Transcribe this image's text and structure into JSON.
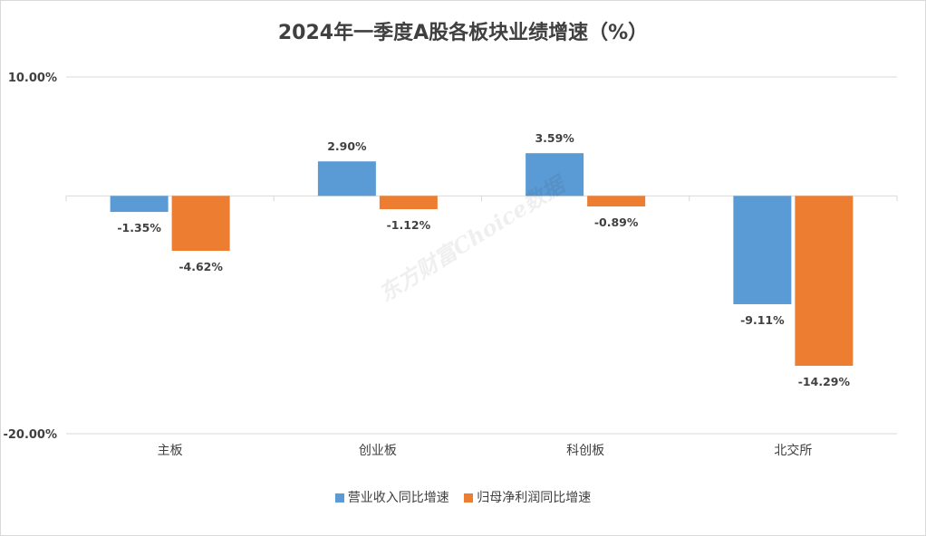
{
  "chart_data": {
    "type": "bar",
    "title": "2024年一季度A股各板块业绩增速（%）",
    "categories": [
      "主板",
      "创业板",
      "科创板",
      "北交所"
    ],
    "series": [
      {
        "name": "营业收入同比增速",
        "color": "#5b9bd5",
        "values": [
          -1.35,
          2.9,
          3.59,
          -9.11
        ],
        "labels": [
          "-1.35%",
          "2.90%",
          "3.59%",
          "-9.11%"
        ]
      },
      {
        "name": "归母净利润同比增速",
        "color": "#ed7d31",
        "values": [
          -4.62,
          -1.12,
          -0.89,
          -14.29
        ],
        "labels": [
          "-4.62%",
          "-1.12%",
          "-0.89%",
          "-14.29%"
        ]
      }
    ],
    "ylim": [
      -20,
      10
    ],
    "yticks": [
      10,
      -20
    ],
    "ytick_labels": [
      "10.00%",
      "-20.00%"
    ],
    "grid": true,
    "legend": "bottom-center"
  },
  "watermark": "东方财富Choice数据"
}
